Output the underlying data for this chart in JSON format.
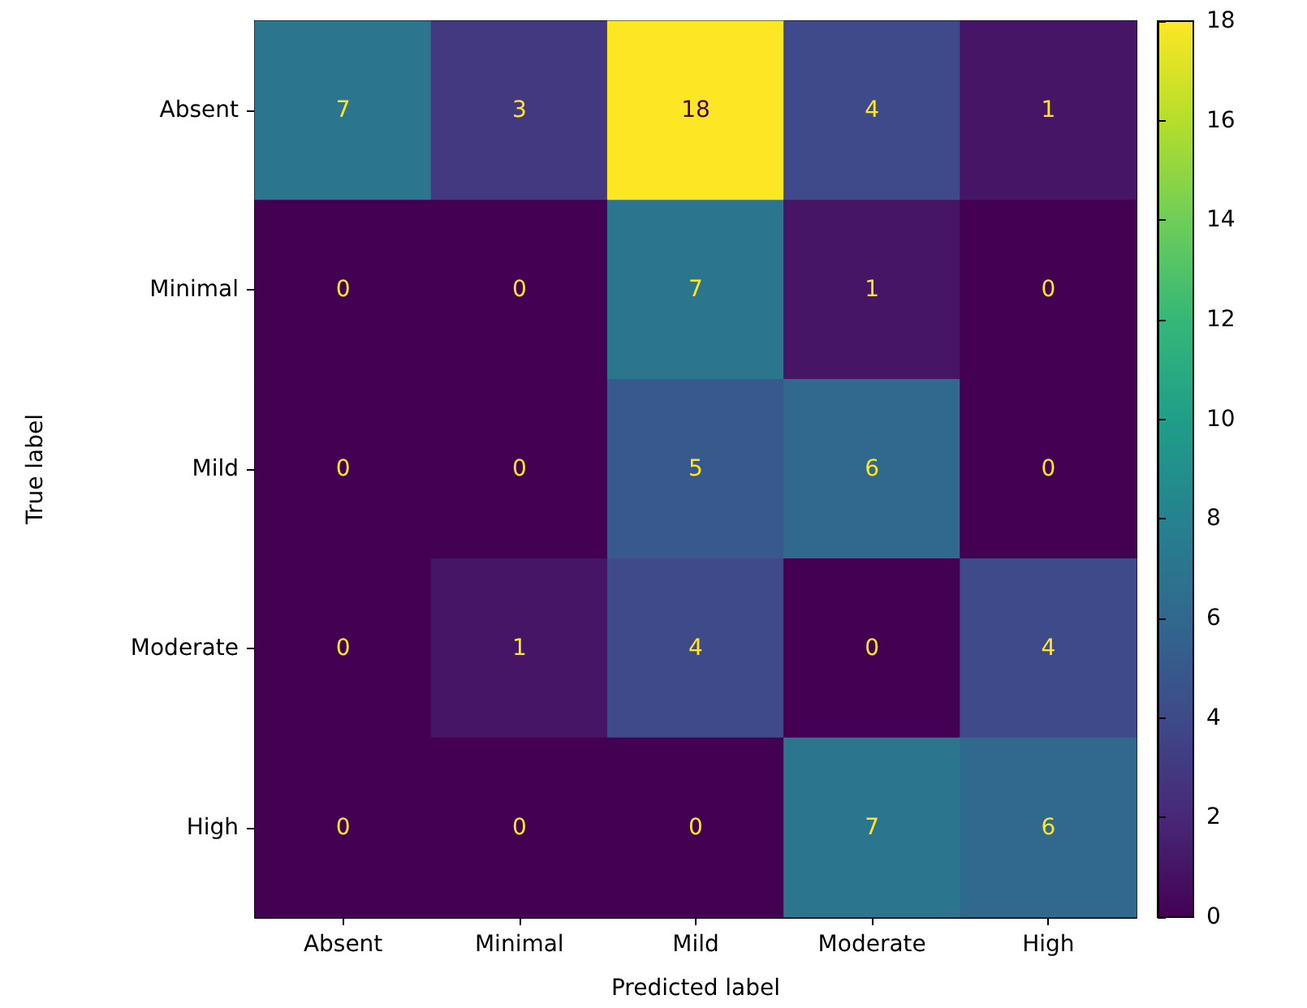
{
  "chart_data": {
    "type": "heatmap",
    "xlabel": "Predicted label",
    "ylabel": "True label",
    "categories": [
      "Absent",
      "Minimal",
      "Mild",
      "Moderate",
      "High"
    ],
    "y_categories": [
      "Absent",
      "Minimal",
      "Mild",
      "Moderate",
      "High"
    ],
    "cells": [
      [
        7,
        3,
        18,
        4,
        1
      ],
      [
        0,
        0,
        7,
        1,
        0
      ],
      [
        0,
        0,
        5,
        6,
        0
      ],
      [
        0,
        1,
        4,
        0,
        4
      ],
      [
        0,
        0,
        0,
        7,
        6
      ]
    ],
    "clim": [
      0,
      18
    ],
    "cticks": [
      0,
      2,
      4,
      6,
      8,
      10,
      12,
      14,
      16,
      18
    ],
    "data_labels": true,
    "grid": false
  }
}
